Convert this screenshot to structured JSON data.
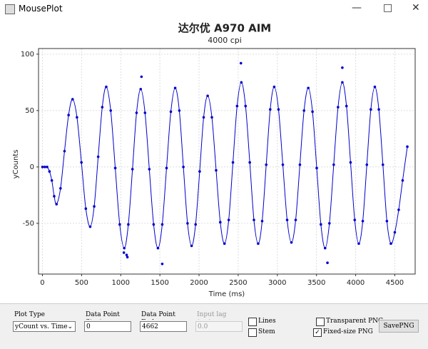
{
  "window": {
    "title": "MousePlot"
  },
  "chart_data": {
    "type": "scatter",
    "title": "达尔优 A970 AIM",
    "subtitle": "4000 cpi",
    "x_label": "Time (ms)",
    "y_label": "yCounts",
    "xlim": [
      -50,
      4760
    ],
    "ylim": [
      -95,
      105
    ],
    "xticks": [
      0,
      500,
      1000,
      1500,
      2000,
      2500,
      3000,
      3500,
      4000,
      4500
    ],
    "yticks": [
      -50,
      0,
      50,
      100
    ],
    "grid": true,
    "series": [
      {
        "color": "#0000cc",
        "line": true,
        "x": [
          0,
          30,
          60,
          90,
          120,
          150,
          180,
          231,
          282,
          334,
          385,
          441,
          498,
          554,
          610,
          661,
          712,
          764,
          815,
          872,
          930,
          987,
          1045,
          1097,
          1150,
          1202,
          1255,
          1310,
          1365,
          1420,
          1475,
          1530,
          1585,
          1640,
          1695,
          1748,
          1800,
          1853,
          1905,
          1956,
          2008,
          2059,
          2110,
          2164,
          2218,
          2271,
          2325,
          2379,
          2433,
          2486,
          2540,
          2594,
          2648,
          2701,
          2755,
          2806,
          2858,
          2909,
          2960,
          3015,
          3070,
          3125,
          3180,
          3234,
          3288,
          3341,
          3395,
          3449,
          3503,
          3556,
          3610,
          3665,
          3720,
          3775,
          3830,
          3883,
          3935,
          3988,
          4040,
          4091,
          4143,
          4194,
          4245,
          4296,
          4348,
          4399,
          4450,
          4500,
          4550,
          4600,
          4660
        ],
        "values": [
          0,
          0,
          0,
          -4,
          -12,
          -26,
          -33,
          -19,
          14,
          46,
          60,
          44,
          4,
          -37,
          -53,
          -35,
          9,
          53,
          71,
          50,
          -1,
          -51,
          -72,
          -51,
          -2,
          48,
          69,
          48,
          -2,
          -51,
          -72,
          -51,
          -1,
          49,
          70,
          50,
          0,
          -50,
          -70,
          -51,
          -4,
          44,
          63,
          44,
          -3,
          -49,
          -68,
          -47,
          4,
          54,
          75,
          54,
          4,
          -47,
          -68,
          -48,
          2,
          51,
          71,
          51,
          2,
          -47,
          -67,
          -47,
          2,
          50,
          70,
          49,
          -1,
          -51,
          -72,
          -50,
          2,
          53,
          75,
          54,
          4,
          -47,
          -68,
          -48,
          2,
          51,
          71,
          51,
          2,
          -48,
          -68,
          -58,
          -38,
          -12,
          18
        ]
      },
      {
        "color": "#0000cc",
        "line": false,
        "x": [
          1040,
          1075,
          1085,
          1265,
          1530,
          2535,
          3640,
          3830
        ],
        "values": [
          -76,
          -78,
          -80,
          80,
          -86,
          92,
          -85,
          88
        ]
      }
    ]
  },
  "controls": {
    "plot_type_label": "Plot Type",
    "plot_type_value": "yCount vs. Time",
    "start_label": "Data Point Start",
    "start_value": "0",
    "end_label": "Data Point End",
    "end_value": "4662",
    "lag_label": "Input lag (ms)",
    "lag_value": "0.0",
    "lines": "Lines",
    "stem": "Stem",
    "transparent": "Transparent PNG",
    "fixed": "Fixed-size PNG",
    "save": "SavePNG"
  }
}
